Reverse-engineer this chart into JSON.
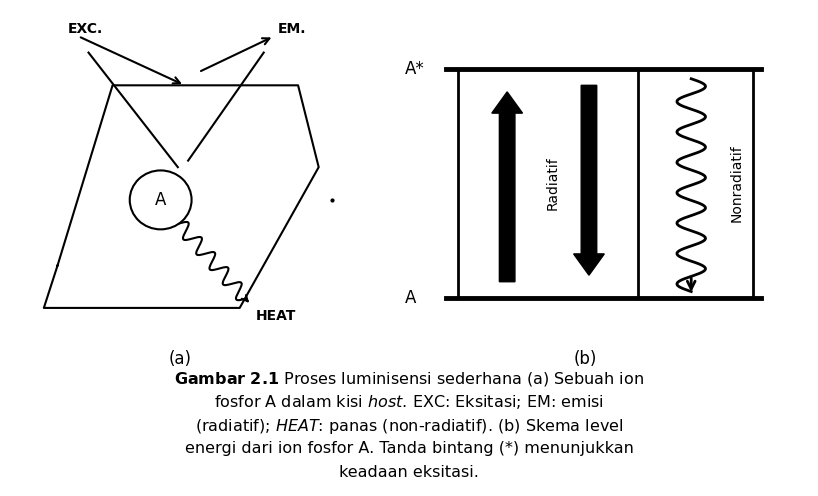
{
  "bg_color": "#ffffff",
  "label_a": "(a)",
  "label_b": "(b)",
  "exc_label": "EXC.",
  "em_label": "EM.",
  "heat_label": "HEAT",
  "a_label": "A",
  "a_star_label": "A*",
  "radiatif_label": "Radiatif",
  "nonradiatif_label": "Nonradiatif",
  "caption_line1": "Gambar 2.1 Proses luminisensi sederhana (a) Sebuah ion",
  "caption_line2": "fosfor A dalam kisi host. EXC: Eksitasi; EM: emisi",
  "caption_line3": "(radiatif); HEAT: panas (non-radiatif). (b) Skema level",
  "caption_line4": "energi dari ion fosfor A. Tanda bintang (*) menunjukkan",
  "caption_line5": "keadaan eksitasi."
}
